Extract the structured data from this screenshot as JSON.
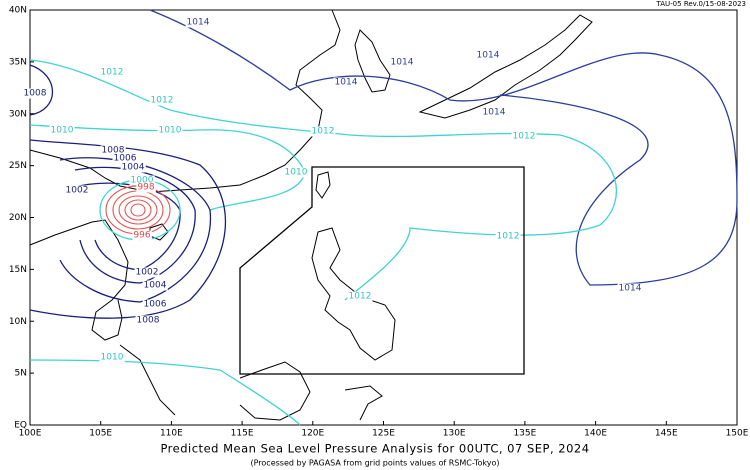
{
  "header": {
    "revision": "TAU-05 Rev.0/15-08-2023"
  },
  "footer": {
    "title": "Predicted Mean Sea Level Pressure Analysis for 00UTC, 07 SEP, 2024",
    "subtitle": "(Processed by PAGASA from grid points values of RSMC-Tokyo)"
  },
  "map": {
    "lon_labels": [
      "100E",
      "105E",
      "110E",
      "115E",
      "120E",
      "125E",
      "130E",
      "135E",
      "140E",
      "145E",
      "150E"
    ],
    "lat_labels": [
      "EQ",
      "5N",
      "10N",
      "15N",
      "20N",
      "25N",
      "30N",
      "35N",
      "40N"
    ],
    "contour_labels": [
      "1014",
      "1012",
      "1008",
      "1012",
      "1010",
      "1010",
      "1008",
      "1006",
      "1004",
      "1002",
      "1000",
      "998",
      "996",
      "1002",
      "1004",
      "1006",
      "1008",
      "1010",
      "1014",
      "1014",
      "1014",
      "1014",
      "1012",
      "1012",
      "1010",
      "1012",
      "1012",
      "1014"
    ]
  }
}
